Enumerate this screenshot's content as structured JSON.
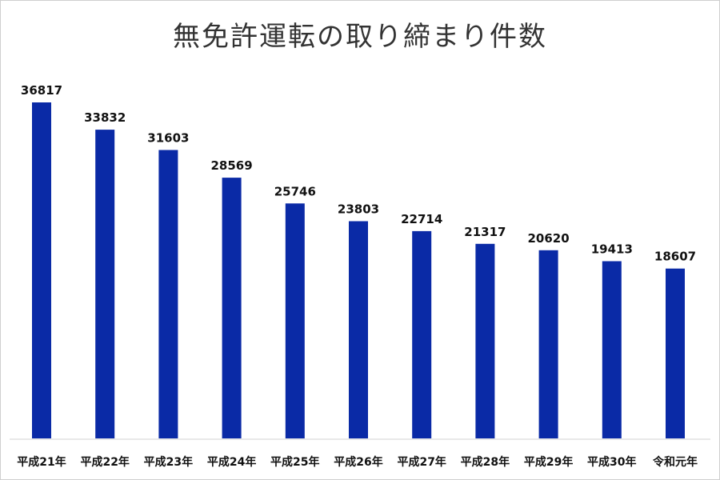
{
  "chart_data": {
    "type": "bar",
    "title": "無免許運転の取り締まり件数",
    "xlabel": "",
    "ylabel": "",
    "categories": [
      "平成21年",
      "平成22年",
      "平成23年",
      "平成24年",
      "平成25年",
      "平成26年",
      "平成27年",
      "平成28年",
      "平成29年",
      "平成30年",
      "令和元年"
    ],
    "values": [
      36817,
      33832,
      31603,
      28569,
      25746,
      23803,
      22714,
      21317,
      20620,
      19413,
      18607
    ],
    "data_labels": [
      "36817",
      "33832",
      "31603",
      "28569",
      "25746",
      "23803",
      "22714",
      "21317",
      "20620",
      "19413",
      "18607"
    ],
    "ylim": [
      0,
      40000
    ],
    "grid": false,
    "bar_color": "#0A2AA6"
  }
}
